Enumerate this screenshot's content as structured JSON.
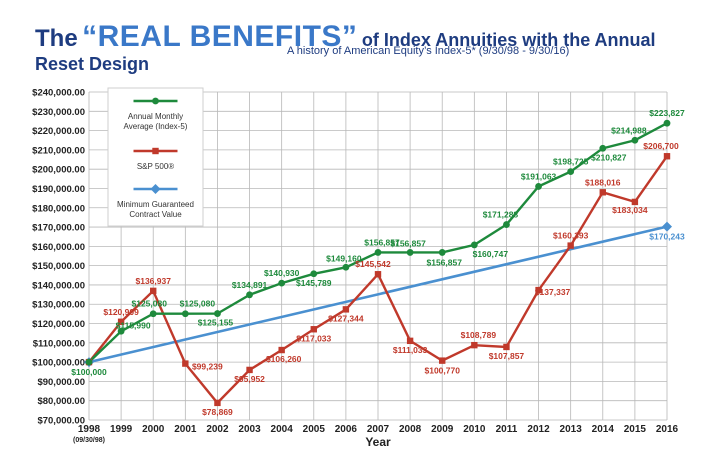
{
  "title": {
    "prefix": "The",
    "highlight": "“REAL BENEFITS”",
    "suffix": "of Index Annuities with the Annual Reset Design"
  },
  "subtitle": "A history of American Equity’s Index-5* (9/30/98 - 9/30/16)",
  "colors": {
    "index5": "#1e8a3c",
    "sp500": "#c0392b",
    "guaranteed": "#4a90d0",
    "title_dark": "#1e3c80",
    "title_accent": "#3a78c8"
  },
  "chart_data": {
    "type": "line",
    "title": "",
    "xlabel": "Year",
    "ylabel": "",
    "x": [
      "1998",
      "1999",
      "2000",
      "2001",
      "2002",
      "2003",
      "2004",
      "2005",
      "2006",
      "2007",
      "2008",
      "2009",
      "2010",
      "2011",
      "2012",
      "2013",
      "2014",
      "2015",
      "2016"
    ],
    "x_sublabel": "(09/30/98)",
    "ylim": [
      70000,
      240000
    ],
    "yticks": [
      "$70,000.00",
      "$80,000.00",
      "$90,000.00",
      "$100,000.00",
      "$110,000.00",
      "$120,000.00",
      "$130,000.00",
      "$140,000.00",
      "$150,000.00",
      "$160,000.00",
      "$170,000.00",
      "$180,000.00",
      "$190,000.00",
      "$200,000.00",
      "$210,000.00",
      "$220,000.00",
      "$230,000.00",
      "$240,000.00"
    ],
    "grid": true,
    "legend_position": "top-left",
    "series": [
      {
        "name": "Annual Monthly Average (Index-5)",
        "marker": "circle",
        "values": [
          100000,
          115990,
          125080,
          125080,
          125155,
          134891,
          140930,
          145789,
          149160,
          156857,
          156857,
          156857,
          160747,
          171288,
          191063,
          198725,
          210827,
          214988,
          223827
        ],
        "labels": [
          "$100,000",
          "$115,990",
          "$125,080",
          "$125,080",
          "$125,155",
          "$134,891",
          "$140,930",
          "$145,789",
          "$149,160",
          "$156,857",
          "$156,857",
          "$156,857",
          "$160,747",
          "$171,288",
          "$191,063",
          "$198,725",
          "$210,827",
          "$214,988",
          "$223,827"
        ]
      },
      {
        "name": "S&P 500®",
        "marker": "square",
        "values": [
          100000,
          120909,
          136937,
          99239,
          78869,
          95952,
          106260,
          117033,
          127344,
          145542,
          111033,
          100770,
          108789,
          107857,
          137337,
          160393,
          188016,
          183034,
          206700
        ],
        "labels": [
          "",
          "$120,909",
          "$136,937",
          "$99,239",
          "$78,869",
          "$95,952",
          "$106,260",
          "$117,033",
          "$127,344",
          "$145,542",
          "$111,033",
          "$100,770",
          "$108,789",
          "$107,857",
          "$137,337",
          "$160,393",
          "$188,016",
          "$183,034",
          "$206,700"
        ]
      },
      {
        "name": "Minimum Guaranteed Contract Value",
        "marker": "diamond",
        "points": [
          [
            0,
            100000
          ],
          [
            18,
            170243
          ]
        ],
        "labels": [
          "",
          "$170,243"
        ]
      }
    ]
  }
}
